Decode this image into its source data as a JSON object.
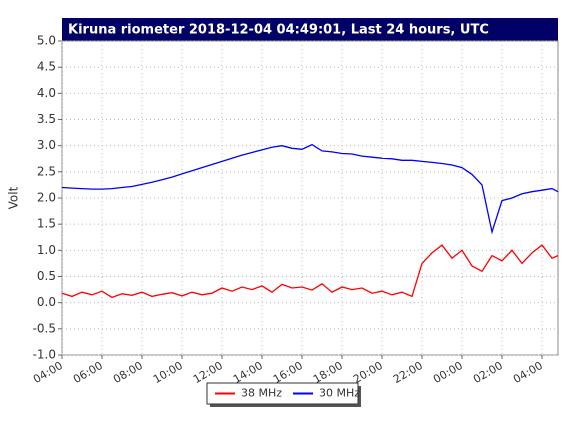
{
  "chart_data": {
    "type": "line",
    "title": "Kiruna riometer 2018-12-04 04:49:01, Last 24 hours, UTC",
    "y_label": "Volt",
    "x": [
      0,
      0.5,
      1,
      1.5,
      2,
      2.5,
      3,
      3.5,
      4,
      4.5,
      5,
      5.5,
      6,
      6.5,
      7,
      7.5,
      8,
      8.5,
      9,
      9.5,
      10,
      10.5,
      11,
      11.5,
      12,
      12.5,
      13,
      13.5,
      14,
      14.5,
      15,
      15.5,
      16,
      16.5,
      17,
      17.5,
      18,
      18.5,
      19,
      19.5,
      20,
      20.5,
      21,
      21.5,
      22,
      22.5,
      23,
      23.5,
      24,
      24.5,
      24.8
    ],
    "series": [
      {
        "name": "38 MHz",
        "color": "#ff0000",
        "values": [
          0.18,
          0.12,
          0.2,
          0.15,
          0.22,
          0.1,
          0.17,
          0.14,
          0.2,
          0.12,
          0.16,
          0.19,
          0.13,
          0.2,
          0.15,
          0.18,
          0.28,
          0.22,
          0.3,
          0.25,
          0.32,
          0.2,
          0.35,
          0.28,
          0.3,
          0.24,
          0.36,
          0.2,
          0.3,
          0.25,
          0.28,
          0.18,
          0.22,
          0.15,
          0.2,
          0.12,
          0.75,
          0.95,
          1.1,
          0.85,
          1.0,
          0.7,
          0.6,
          0.9,
          0.8,
          1.0,
          0.75,
          0.95,
          1.1,
          0.85,
          0.9
        ]
      },
      {
        "name": "30 MHz",
        "color": "#0000ff",
        "values": [
          2.2,
          2.19,
          2.18,
          2.17,
          2.17,
          2.18,
          2.2,
          2.22,
          2.26,
          2.3,
          2.35,
          2.4,
          2.46,
          2.52,
          2.58,
          2.64,
          2.7,
          2.76,
          2.82,
          2.87,
          2.92,
          2.97,
          3.0,
          2.95,
          2.93,
          3.02,
          2.9,
          2.88,
          2.85,
          2.84,
          2.8,
          2.78,
          2.76,
          2.75,
          2.72,
          2.72,
          2.7,
          2.68,
          2.66,
          2.63,
          2.58,
          2.45,
          2.25,
          1.35,
          1.95,
          2.0,
          2.08,
          2.12,
          2.15,
          2.18,
          2.12
        ]
      }
    ],
    "xlim": [
      0,
      24.8
    ],
    "xticks": [
      {
        "value": 0,
        "label": "04:00"
      },
      {
        "value": 2,
        "label": "06:00"
      },
      {
        "value": 4,
        "label": "08:00"
      },
      {
        "value": 6,
        "label": "10:00"
      },
      {
        "value": 8,
        "label": "12:00"
      },
      {
        "value": 10,
        "label": "14:00"
      },
      {
        "value": 12,
        "label": "16:00"
      },
      {
        "value": 14,
        "label": "18:00"
      },
      {
        "value": 16,
        "label": "20:00"
      },
      {
        "value": 18,
        "label": "22:00"
      },
      {
        "value": 20,
        "label": "00:00"
      },
      {
        "value": 22,
        "label": "02:00"
      },
      {
        "value": 24,
        "label": "04:00"
      }
    ],
    "ylim": [
      -1,
      5
    ],
    "yticks": [
      {
        "value": -1,
        "label": "-1.0"
      },
      -0.5,
      {
        "value": 0,
        "label": "0.0"
      },
      0.5,
      {
        "value": 1,
        "label": "1.0"
      },
      1.5,
      {
        "value": 2,
        "label": "2.0"
      },
      2.5,
      {
        "value": 3,
        "label": "3.0"
      },
      3.5,
      {
        "value": 4,
        "label": "4.0"
      },
      4.5,
      {
        "value": 5,
        "label": "5.0"
      }
    ],
    "grid": true,
    "legend": "bottom"
  }
}
